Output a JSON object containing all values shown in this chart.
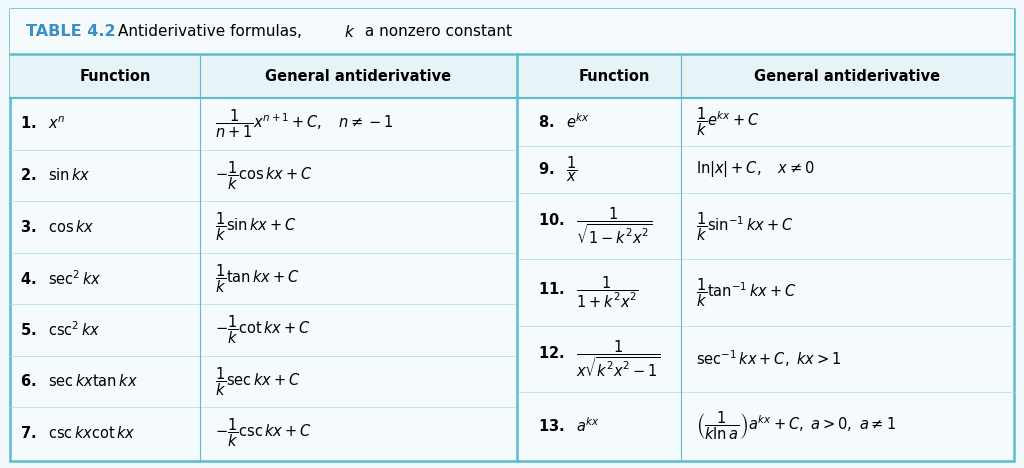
{
  "title_bold": "TABLE 4.2",
  "title_rest": "  Antiderivative formulas, ",
  "title_italic_k": "$k$",
  "title_end": " a nonzero constant",
  "title_color": "#3a8fc4",
  "border_color": "#5bbccc",
  "header_bg": "#e6f4f8",
  "body_bg": "#f5fbfc",
  "background": "#f0f8fb",
  "divider_color": "#aaddee",
  "rows_left": [
    [
      "$\\mathbf{1.}\\ \\ x^n$",
      "$\\dfrac{1}{n+1}x^{n+1} + C, \\quad n \\neq -1$"
    ],
    [
      "$\\mathbf{2.}\\ \\ \\sin kx$",
      "$-\\dfrac{1}{k}\\cos kx + C$"
    ],
    [
      "$\\mathbf{3.}\\ \\ \\cos kx$",
      "$\\dfrac{1}{k}\\sin kx + C$"
    ],
    [
      "$\\mathbf{4.}\\ \\ \\sec^2 kx$",
      "$\\dfrac{1}{k}\\tan kx + C$"
    ],
    [
      "$\\mathbf{5.}\\ \\ \\csc^2 kx$",
      "$-\\dfrac{1}{k}\\cot kx + C$"
    ],
    [
      "$\\mathbf{6.}\\ \\ \\sec kx\\tan kx$",
      "$\\dfrac{1}{k}\\sec kx + C$"
    ],
    [
      "$\\mathbf{7.}\\ \\ \\csc kx\\cot kx$",
      "$-\\dfrac{1}{k}\\csc kx + C$"
    ]
  ],
  "rows_right": [
    [
      "$\\mathbf{8.}\\ \\ e^{kx}$",
      "$\\dfrac{1}{k}e^{kx} + C$"
    ],
    [
      "$\\mathbf{9.}\\ \\ \\dfrac{1}{x}$",
      "$\\ln|x| + C, \\quad x \\neq 0$"
    ],
    [
      "$\\mathbf{10.}\\ \\ \\dfrac{1}{\\sqrt{1-k^2x^2}}$",
      "$\\dfrac{1}{k}\\sin^{-1} kx + C$"
    ],
    [
      "$\\mathbf{11.}\\ \\ \\dfrac{1}{1+k^2x^2}$",
      "$\\dfrac{1}{k}\\tan^{-1} kx + C$"
    ],
    [
      "$\\mathbf{12.}\\ \\ \\dfrac{1}{x\\sqrt{k^2x^2-1}}$",
      "$\\sec^{-1} kx + C,\\ kx > 1$"
    ],
    [
      "$\\mathbf{13.}\\ \\ a^{kx}$",
      "$\\left(\\dfrac{1}{k\\ln a}\\right)a^{kx} + C,\\ a>0,\\ a \\neq 1$"
    ]
  ],
  "figsize": [
    10.24,
    4.68
  ],
  "dpi": 100
}
